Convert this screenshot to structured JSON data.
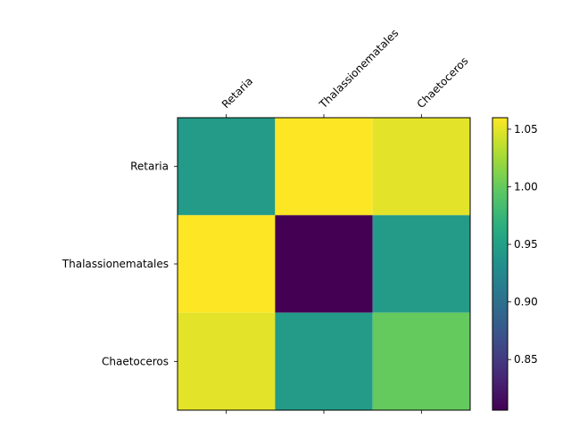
{
  "chart_data": {
    "type": "heatmap",
    "title": "",
    "xlabel": "",
    "ylabel": "",
    "x_categories": [
      "Retaria",
      "Thalassionematales",
      "Chaetoceros"
    ],
    "y_categories": [
      "Retaria",
      "Thalassionematales",
      "Chaetoceros"
    ],
    "values": [
      [
        0.945,
        1.06,
        1.05
      ],
      [
        1.06,
        0.806,
        0.945
      ],
      [
        1.05,
        0.945,
        1.0
      ]
    ],
    "colormap": "viridis",
    "vmin": 0.806,
    "vmax": 1.06,
    "colorbar": {
      "ticks": [
        0.85,
        0.9,
        0.95,
        1.0,
        1.05
      ],
      "tick_labels": [
        "0.85",
        "0.90",
        "0.95",
        "1.00",
        "1.05"
      ]
    },
    "x_tick_position": "top",
    "x_tick_rotation_deg": -45
  }
}
